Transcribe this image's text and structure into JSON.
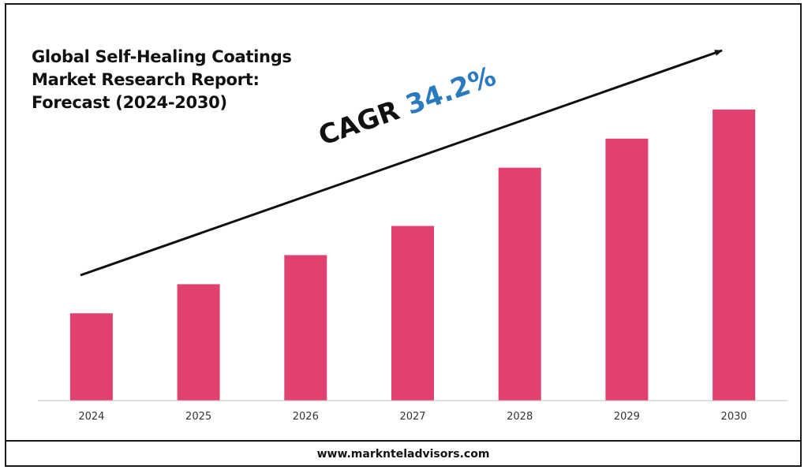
{
  "title_lines": [
    "Global Self-Healing Coatings",
    "Market Research Report:",
    "Forecast (2024-2030)"
  ],
  "cagr": {
    "label": "CAGR",
    "value": "34.2%"
  },
  "footer": {
    "website": "www.marknteladvisors.com"
  },
  "colors": {
    "bar": "#e1416f",
    "axis": "#bfbfbf",
    "cagr_value": "#2a7ac0",
    "text": "#111111"
  },
  "chart_data": {
    "type": "bar",
    "title": "Global Self-Healing Coatings Market Research Report: Forecast (2024-2030)",
    "categories": [
      "2024",
      "2025",
      "2026",
      "2027",
      "2028",
      "2029",
      "2030"
    ],
    "values": [
      30,
      40,
      50,
      60,
      80,
      90,
      100
    ],
    "ylim": [
      0,
      110
    ],
    "xlabel": "",
    "ylabel": "",
    "grid": false,
    "annotation": "CAGR 34.2%"
  }
}
